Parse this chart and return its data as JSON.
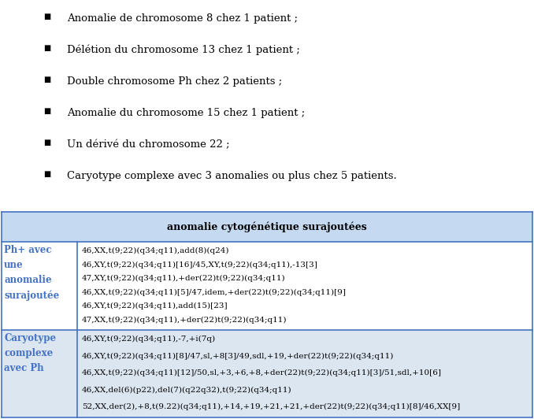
{
  "background_color": "#ffffff",
  "bullet_items": [
    "Anomalie de chromosome 8 chez 1 patient ;",
    "Délétion du chromosome 13 chez 1 patient ;",
    "Double chromosome Ph chez 2 patients ;",
    "Anomalie du chromosome 15 chez 1 patient ;",
    "Un dérivé du chromosome 22 ;",
    "Caryotype complexe avec 3 anomalies ou plus chez 5 patients."
  ],
  "table_header": "anomalie cytogénétique surajoutées",
  "table_header_bg": "#c5d9f1",
  "table_row1_label": "Ph+ avec\nune\nanomalie\nsurajoutée",
  "table_row1_label_color": "#4472c4",
  "table_row1_bg": "#ffffff",
  "table_row1_lines": [
    "46,XX,t(9;22)(q34;q11),add(8)(q24)",
    "46,XY,t(9;22)(q34;q11)[16]/45,XY,t(9;22)(q34;q11),-13[3]",
    "47,XY,t(9;22)(q34;q11),+der(22)t(9;22)(q34;q11)",
    "46,XX,t(9;22)(q34;q11)[5]/47,idem,+der(22)t(9;22)(q34;q11)[9]",
    "46,XY,t(9;22)(q34;q11),add(15)[23]",
    "47,XX,t(9;22)(q34;q11),+der(22)t(9;22)(q34;q11)"
  ],
  "table_row2_label": "Caryotype\ncomplexe\navec Ph",
  "table_row2_label_color": "#4472c4",
  "table_row2_bg": "#dce6f1",
  "table_row2_lines": [
    "46,XY,t(9;22)(q34;q11),-7,+i(7q)",
    "46,XY,t(9;22)(q34;q11)[8]/47,sl,+8[3]/49,sdl,+19,+der(22)t(9;22)(q34;q11)",
    "46,XX,t(9;22)(q34;q11)[12]/50,sl,+3,+6,+8,+der(22)t(9;22)(q34;q11)[3]/51,sdl,+10[6]",
    "46,XX,del(6)(p22),del(7)(q22q32),t(9;22)(q34;q11)",
    "52,XX,der(2),+8,t(9.22)(q34;q11),+14,+19,+21,+21,+der(22)t(9;22)(q34;q11)[8]/46,XX[9]"
  ],
  "border_color": "#4472c4",
  "text_color": "#000000",
  "bullet_symbol": "■",
  "font_size_bullets": 9.5,
  "font_size_table": 7.5,
  "font_size_header": 9,
  "font_size_label": 8.5
}
